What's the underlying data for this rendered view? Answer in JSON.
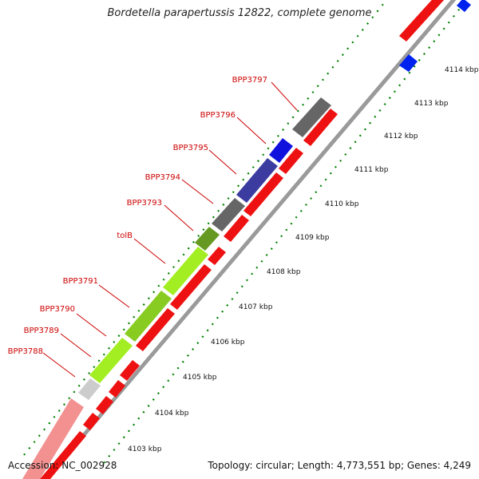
{
  "title": "Bordetella parapertussis 12822, complete genome",
  "footer": {
    "accession": "Accession: NC_002928",
    "summary": "Topology: circular; Length: 4,773,551 bp; Genes: 4,249"
  },
  "colors": {
    "forward_gene": "#ee0000",
    "reverse_gene_blue": "#0000dd",
    "backbone": "#888888",
    "tick": "#008000",
    "label_red": "#cc0000"
  },
  "ticks": [
    "4103 kbp",
    "4104 kbp",
    "4105 kbp",
    "4106 kbp",
    "4107 kbp",
    "4108 kbp",
    "4109 kbp",
    "4110 kbp",
    "4111 kbp",
    "4112 kbp",
    "4113 kbp",
    "4114 kbp"
  ],
  "gene_labels": [
    "BPP3788",
    "BPP3789",
    "BPP3790",
    "BPP3791",
    "tolB",
    "BPP3793",
    "BPP3794",
    "BPP3795",
    "BPP3796",
    "BPP3797"
  ]
}
